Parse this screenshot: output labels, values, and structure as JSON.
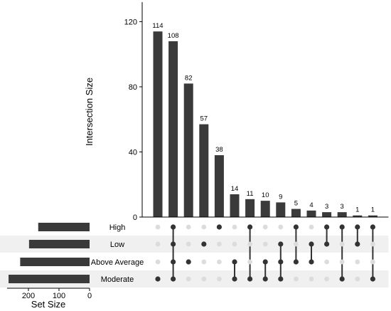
{
  "chart_data": {
    "type": "upset",
    "colors": {
      "bar": "#3a3a3a",
      "dot_on": "#333333",
      "dot_off": "#dcdcdc",
      "stripe": "#f0f0f0",
      "axis": "#000000"
    },
    "intersection_axis": {
      "label": "Intersection Size",
      "ylim": [
        0,
        132
      ],
      "ticks": [
        0,
        40,
        80,
        120
      ]
    },
    "set_size_axis": {
      "label": "Set Size",
      "xlim": [
        0,
        270
      ],
      "ticks": [
        200,
        100,
        0
      ]
    },
    "sets": [
      {
        "name": "High",
        "size": 168
      },
      {
        "name": "Low",
        "size": 198
      },
      {
        "name": "Above Average",
        "size": 227
      },
      {
        "name": "Moderate",
        "size": 265
      }
    ],
    "intersections": [
      {
        "size": 114,
        "members": [
          "Moderate"
        ]
      },
      {
        "size": 108,
        "members": [
          "High",
          "Low",
          "Above Average",
          "Moderate"
        ]
      },
      {
        "size": 82,
        "members": [
          "Above Average"
        ]
      },
      {
        "size": 57,
        "members": [
          "Low"
        ]
      },
      {
        "size": 38,
        "members": [
          "High"
        ]
      },
      {
        "size": 14,
        "members": [
          "Above Average",
          "Moderate"
        ]
      },
      {
        "size": 11,
        "members": [
          "High",
          "Moderate"
        ]
      },
      {
        "size": 10,
        "members": [
          "Above Average",
          "Moderate"
        ]
      },
      {
        "size": 9,
        "members": [
          "Low",
          "Above Average",
          "Moderate"
        ]
      },
      {
        "size": 5,
        "members": [
          "High",
          "Above Average"
        ]
      },
      {
        "size": 4,
        "members": [
          "Low",
          "Above Average"
        ]
      },
      {
        "size": 3,
        "members": [
          "High",
          "Low"
        ]
      },
      {
        "size": 3,
        "members": [
          "High",
          "Moderate"
        ]
      },
      {
        "size": 1,
        "members": [
          "High",
          "Low"
        ]
      },
      {
        "size": 1,
        "members": [
          "High",
          "Moderate"
        ]
      }
    ]
  }
}
